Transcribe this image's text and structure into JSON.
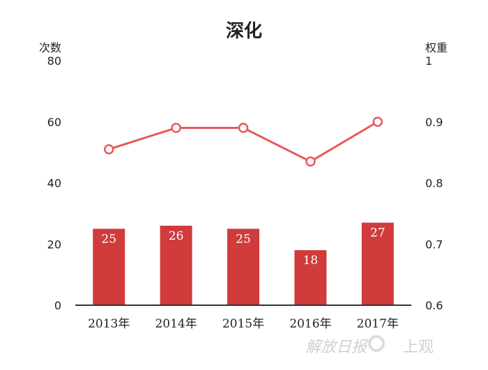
{
  "chart_data": {
    "type": "bar",
    "title": "深化",
    "left_axis_label": "次数",
    "right_axis_label": "权重",
    "categories": [
      "2013年",
      "2014年",
      "2015年",
      "2016年",
      "2017年"
    ],
    "series": [
      {
        "type": "bar",
        "axis": "left",
        "values": [
          25,
          26,
          25,
          18,
          27
        ]
      },
      {
        "type": "line",
        "axis": "right",
        "values": [
          0.855,
          0.89,
          0.89,
          0.835,
          0.9
        ]
      }
    ],
    "left_ylim": [
      0,
      80
    ],
    "left_ticks": [
      "0",
      "20",
      "40",
      "60",
      "80"
    ],
    "right_ylim": [
      0.6,
      1
    ],
    "right_ticks": [
      "0.6",
      "0.7",
      "0.8",
      "0.9",
      "1"
    ],
    "grid": false,
    "colors": {
      "bar": "#d03b3b",
      "bar_label": "#ffffff",
      "line": "#e85a5a"
    }
  },
  "watermark": {
    "brand1": "解放日报",
    "brand2": "上观"
  }
}
